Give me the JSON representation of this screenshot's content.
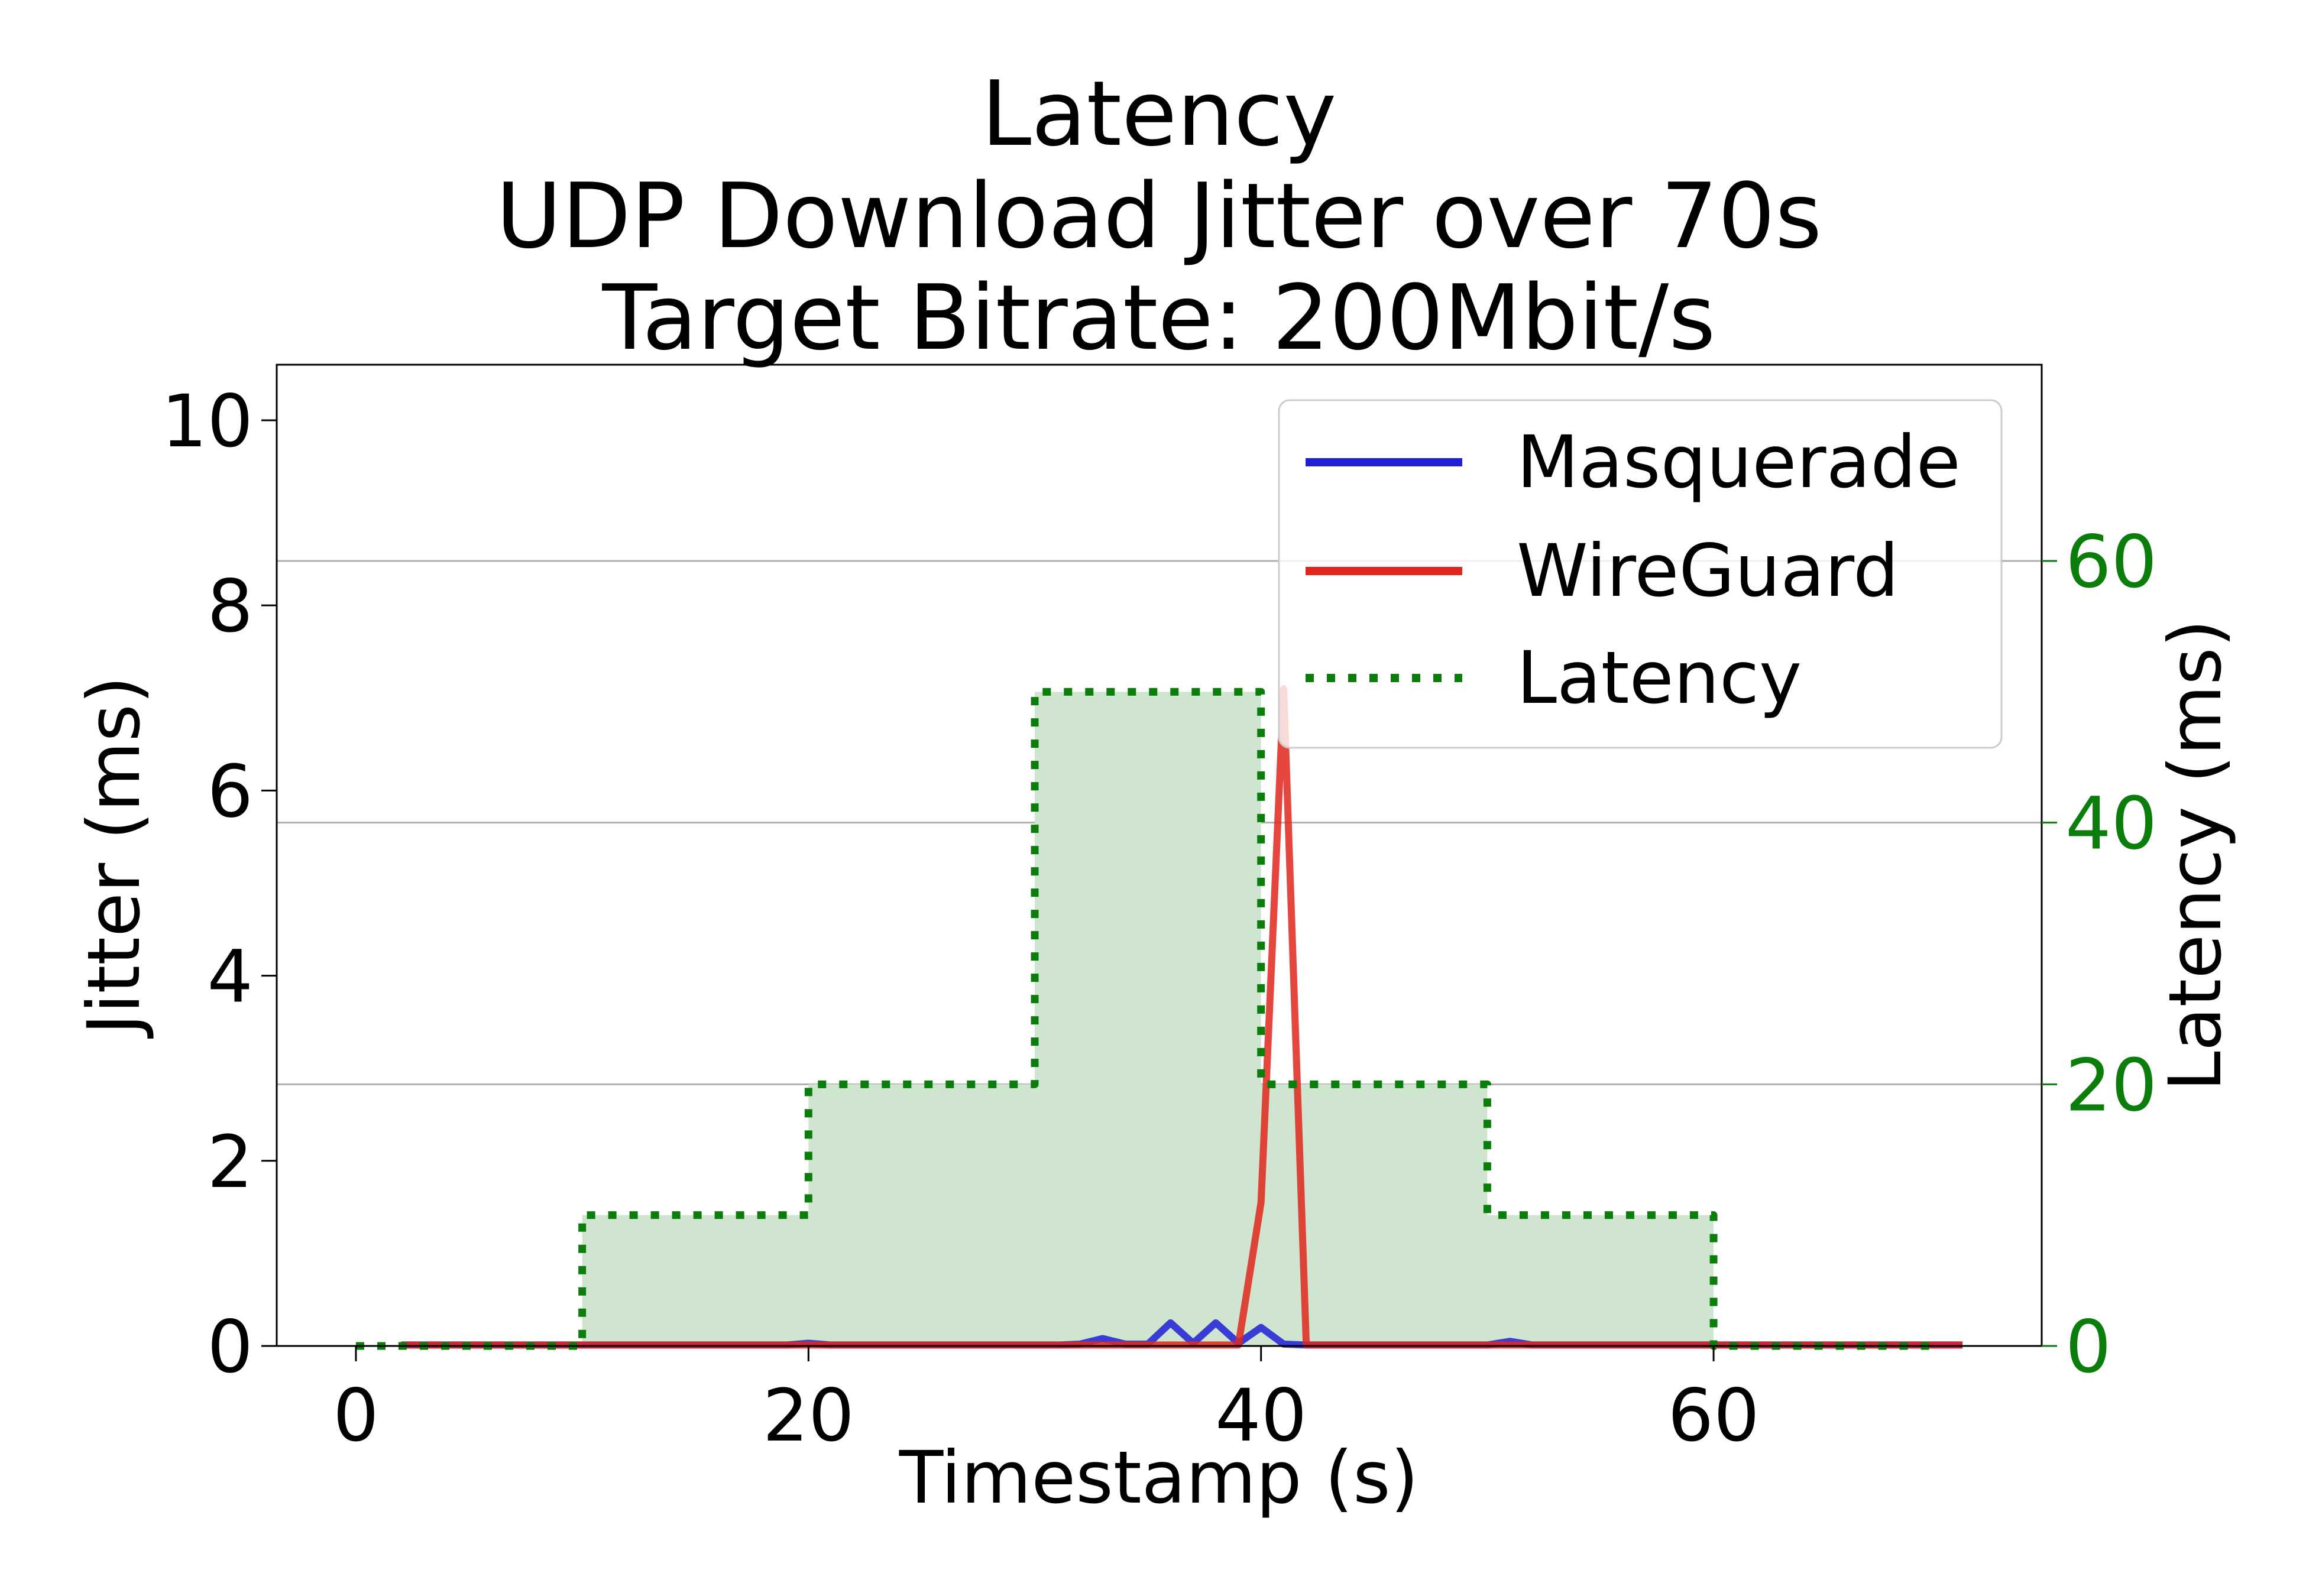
{
  "chart_data": {
    "type": "line",
    "title_lines": [
      "Latency",
      "UDP Download Jitter over 70s",
      "Target Bitrate: 200Mbit/s"
    ],
    "xlabel": "Timestamp (s)",
    "ylabel": "Jitter (ms)",
    "y2label": "Latency (ms)",
    "xlim": [
      -3.5,
      74.5
    ],
    "ylim": [
      0,
      10.6
    ],
    "y2lim": [
      0,
      75
    ],
    "xticks": [
      0,
      20,
      40,
      60
    ],
    "yticks": [
      0,
      2,
      4,
      6,
      8,
      10
    ],
    "y2ticks": [
      0,
      20,
      40,
      60
    ],
    "grid": "horizontal lines at right-axis ticks",
    "legend_position": "upper-right",
    "series": [
      {
        "name": "Masquerade",
        "axis": "left",
        "color": "#1f1fd6",
        "style": "solid",
        "x": [
          2,
          3,
          4,
          5,
          6,
          7,
          8,
          9,
          10,
          11,
          12,
          13,
          14,
          15,
          16,
          17,
          18,
          19,
          20,
          21,
          22,
          23,
          24,
          25,
          26,
          27,
          28,
          29,
          30,
          31,
          32,
          33,
          34,
          35,
          36,
          37,
          38,
          39,
          40,
          41,
          42,
          43,
          44,
          45,
          46,
          47,
          48,
          49,
          50,
          51,
          52,
          53,
          54,
          55,
          56,
          57,
          58,
          59,
          60,
          61,
          62,
          63,
          64,
          65,
          66,
          67,
          68,
          69,
          70,
          71
        ],
        "values": [
          0.01,
          0.01,
          0.01,
          0.01,
          0.01,
          0.01,
          0.01,
          0.01,
          0.01,
          0.01,
          0.01,
          0.01,
          0.01,
          0.01,
          0.01,
          0.01,
          0.01,
          0.01,
          0.03,
          0.01,
          0.01,
          0.01,
          0.01,
          0.01,
          0.01,
          0.01,
          0.01,
          0.01,
          0.01,
          0.01,
          0.02,
          0.08,
          0.02,
          0.02,
          0.25,
          0.03,
          0.25,
          0.03,
          0.2,
          0.02,
          0.01,
          0.01,
          0.01,
          0.01,
          0.01,
          0.01,
          0.01,
          0.01,
          0.01,
          0.05,
          0.01,
          0.01,
          0.01,
          0.01,
          0.01,
          0.01,
          0.01,
          0.01,
          0.01,
          0.01,
          0.01,
          0.01,
          0.01,
          0.01,
          0.01,
          0.01,
          0.01,
          0.01,
          0.01,
          0.01
        ]
      },
      {
        "name": "WireGuard",
        "axis": "left",
        "color": "#e0271d",
        "style": "solid",
        "x": [
          2,
          3,
          4,
          5,
          6,
          7,
          8,
          9,
          10,
          11,
          12,
          13,
          14,
          15,
          16,
          17,
          18,
          19,
          20,
          21,
          22,
          23,
          24,
          25,
          26,
          27,
          28,
          29,
          30,
          31,
          32,
          33,
          34,
          35,
          36,
          37,
          38,
          39,
          40,
          41,
          42,
          43,
          44,
          45,
          46,
          47,
          48,
          49,
          50,
          51,
          52,
          53,
          54,
          55,
          56,
          57,
          58,
          59,
          60,
          61,
          62,
          63,
          64,
          65,
          66,
          67,
          68,
          69,
          70,
          71
        ],
        "values": [
          0.01,
          0.01,
          0.01,
          0.01,
          0.01,
          0.01,
          0.01,
          0.01,
          0.01,
          0.01,
          0.01,
          0.01,
          0.01,
          0.01,
          0.01,
          0.01,
          0.01,
          0.01,
          0.01,
          0.01,
          0.01,
          0.01,
          0.01,
          0.01,
          0.01,
          0.01,
          0.01,
          0.01,
          0.01,
          0.01,
          0.01,
          0.01,
          0.01,
          0.01,
          0.01,
          0.01,
          0.01,
          0.01,
          1.55,
          7.1,
          0.01,
          0.01,
          0.01,
          0.01,
          0.01,
          0.01,
          0.01,
          0.01,
          0.01,
          0.01,
          0.01,
          0.01,
          0.01,
          0.01,
          0.01,
          0.01,
          0.01,
          0.01,
          0.01,
          0.01,
          0.01,
          0.01,
          0.01,
          0.01,
          0.01,
          0.01,
          0.01,
          0.01,
          0.01,
          0.01
        ]
      },
      {
        "name": "Latency",
        "axis": "right",
        "color": "#0b7d0b",
        "fill_color": "#cfe5cf",
        "style": "dotted-step",
        "x": [
          0,
          10,
          10,
          20,
          20,
          30,
          30,
          40,
          40,
          50,
          50,
          60,
          60,
          70
        ],
        "values": [
          0,
          0,
          10,
          10,
          20,
          20,
          50,
          50,
          20,
          20,
          10,
          10,
          0,
          0
        ]
      }
    ]
  }
}
